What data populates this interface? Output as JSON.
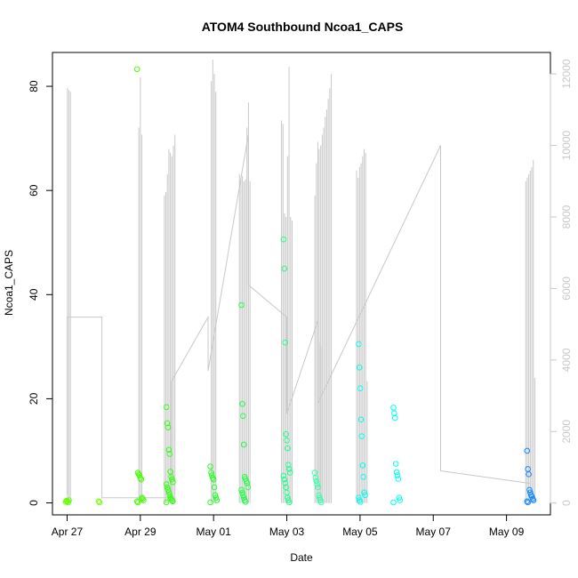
{
  "chart_data": {
    "type": "scatter",
    "title": "ATOM4 Southbound Ncoa1_CAPS",
    "xlabel": "Date",
    "ylabel": "Ncoa1_CAPS",
    "x_ticks": [
      "Apr 27",
      "Apr 29",
      "May 01",
      "May 03",
      "May 05",
      "May 07",
      "May 09"
    ],
    "x_tick_days": [
      0,
      2,
      4,
      6,
      8,
      10,
      12
    ],
    "xlim_days": [
      -0.4,
      13.2
    ],
    "y_ticks": [
      "0",
      "20",
      "40",
      "60",
      "80"
    ],
    "y_tick_values": [
      0,
      20,
      40,
      60,
      80
    ],
    "ylim": [
      -2.3,
      86.5
    ],
    "y2_ticks": [
      "0",
      "2000",
      "4000",
      "6000",
      "8000",
      "10000",
      "12000"
    ],
    "y2_tick_values": [
      0,
      2000,
      4000,
      6000,
      8000,
      10000,
      12000
    ],
    "y2lim": [
      -330,
      12600
    ],
    "grid": false,
    "colors": {
      "spike": "#c8c8c8",
      "trend": "#c8c8c8",
      "axis": "#000000",
      "y2_axis": "#c8c8c8"
    },
    "spike_groups": [
      {
        "day": 0.05,
        "heights": [
          11600,
          11550,
          11500
        ]
      },
      {
        "day": 2.0,
        "heights": [
          10500,
          11900,
          10300
        ]
      },
      {
        "day": 2.8,
        "heights": [
          8600,
          8700,
          9200,
          9900,
          9800,
          9700,
          10000,
          10300
        ]
      },
      {
        "day": 4.0,
        "heights": [
          11800,
          12400,
          12000,
          11500
        ]
      },
      {
        "day": 4.85,
        "heights": [
          9200,
          9100,
          9150,
          9000,
          9050,
          10500,
          11200,
          9000
        ]
      },
      {
        "day": 6.0,
        "heights": [
          10700,
          10600,
          8100,
          8000,
          9700,
          12200,
          8000,
          7900
        ]
      },
      {
        "day": 6.85,
        "heights": [
          8600,
          9500,
          10100,
          4500,
          4400
        ]
      },
      {
        "day": 7.05,
        "heights": [
          9900,
          10000,
          10300,
          10500,
          10800,
          11000,
          11300,
          11600,
          12000
        ]
      },
      {
        "day": 8.05,
        "heights": [
          9300,
          9100,
          9400,
          9500,
          9700,
          9900,
          9800,
          3400
        ]
      },
      {
        "day": 12.65,
        "heights": [
          9000,
          9100,
          9200,
          9300,
          9400,
          9600,
          3500
        ]
      }
    ],
    "trend_days": [
      0,
      0,
      0.95,
      0.95,
      1.95,
      1.95,
      2.85,
      2.85,
      3.85,
      3.85,
      4.95,
      4.95,
      6.0,
      6.0,
      6.85,
      6.85,
      10.2,
      10.2,
      12.65
    ],
    "trend_values": [
      250,
      5200,
      5200,
      150,
      150,
      150,
      150,
      3400,
      5200,
      3700,
      10300,
      6100,
      5200,
      2500,
      5100,
      2800,
      10000,
      900,
      550
    ],
    "series_points": [
      {
        "day": 0.05,
        "color": "#66ff00",
        "values": [
          0.2,
          0.4,
          0.3,
          0.1,
          0.5
        ]
      },
      {
        "day": 0.95,
        "color": "#77ff00",
        "values": [
          0.3,
          0.1
        ]
      },
      {
        "day": 2.0,
        "color": "#44ff00",
        "values": [
          83.3,
          5.8,
          5.5,
          5.3,
          4.8,
          4.5,
          1.0,
          0.8,
          0.5,
          0.3,
          0.1
        ]
      },
      {
        "day": 2.8,
        "color": "#33ff11",
        "values": [
          18.4,
          15.3,
          14.5,
          10.2,
          9.4,
          6.0,
          5.0,
          4.5,
          4.0,
          3.6,
          3.0,
          2.5,
          2.0,
          1.5,
          1.0,
          0.8,
          0.5,
          0.3,
          0.1
        ]
      },
      {
        "day": 4.0,
        "color": "#22ff22",
        "values": [
          7.0,
          5.8,
          5.3,
          4.8,
          4.5,
          3.0,
          1.5,
          1.0,
          0.5,
          0.1
        ]
      },
      {
        "day": 4.85,
        "color": "#22ff44",
        "values": [
          38.0,
          19.0,
          16.7,
          11.2,
          5.0,
          4.6,
          4.2,
          3.8,
          3.0,
          2.5,
          2.0,
          1.5,
          1.0,
          0.5,
          0.2
        ]
      },
      {
        "day": 6.0,
        "color": "#22ff88",
        "values": [
          50.6,
          45.0,
          30.8,
          13.2,
          12.0,
          10.5,
          7.3,
          6.5,
          5.8,
          5.2,
          4.5,
          3.8,
          3.0,
          2.0,
          1.0,
          0.5,
          0.1
        ]
      },
      {
        "day": 6.85,
        "color": "#33ffaa",
        "values": [
          5.8,
          4.8,
          4.2,
          3.6,
          3.0,
          1.5,
          1.0,
          0.5,
          0.1
        ]
      },
      {
        "day": 8.05,
        "color": "#00ffee",
        "values": [
          30.5,
          26.0,
          22.0,
          16.0,
          12.8,
          7.2,
          5.0,
          2.0,
          1.5,
          1.0,
          0.5,
          0.2
        ]
      },
      {
        "day": 9.0,
        "color": "#00ffee",
        "values": [
          18.3,
          17.2,
          16.3,
          7.5,
          5.9,
          5.3,
          4.6,
          1.0,
          0.5,
          0.1
        ]
      },
      {
        "day": 12.65,
        "color": "#1188ff",
        "values": [
          10.0,
          6.5,
          5.5,
          2.5,
          2.0,
          1.5,
          1.2,
          0.8,
          0.5,
          0.3,
          0.1
        ]
      }
    ]
  }
}
